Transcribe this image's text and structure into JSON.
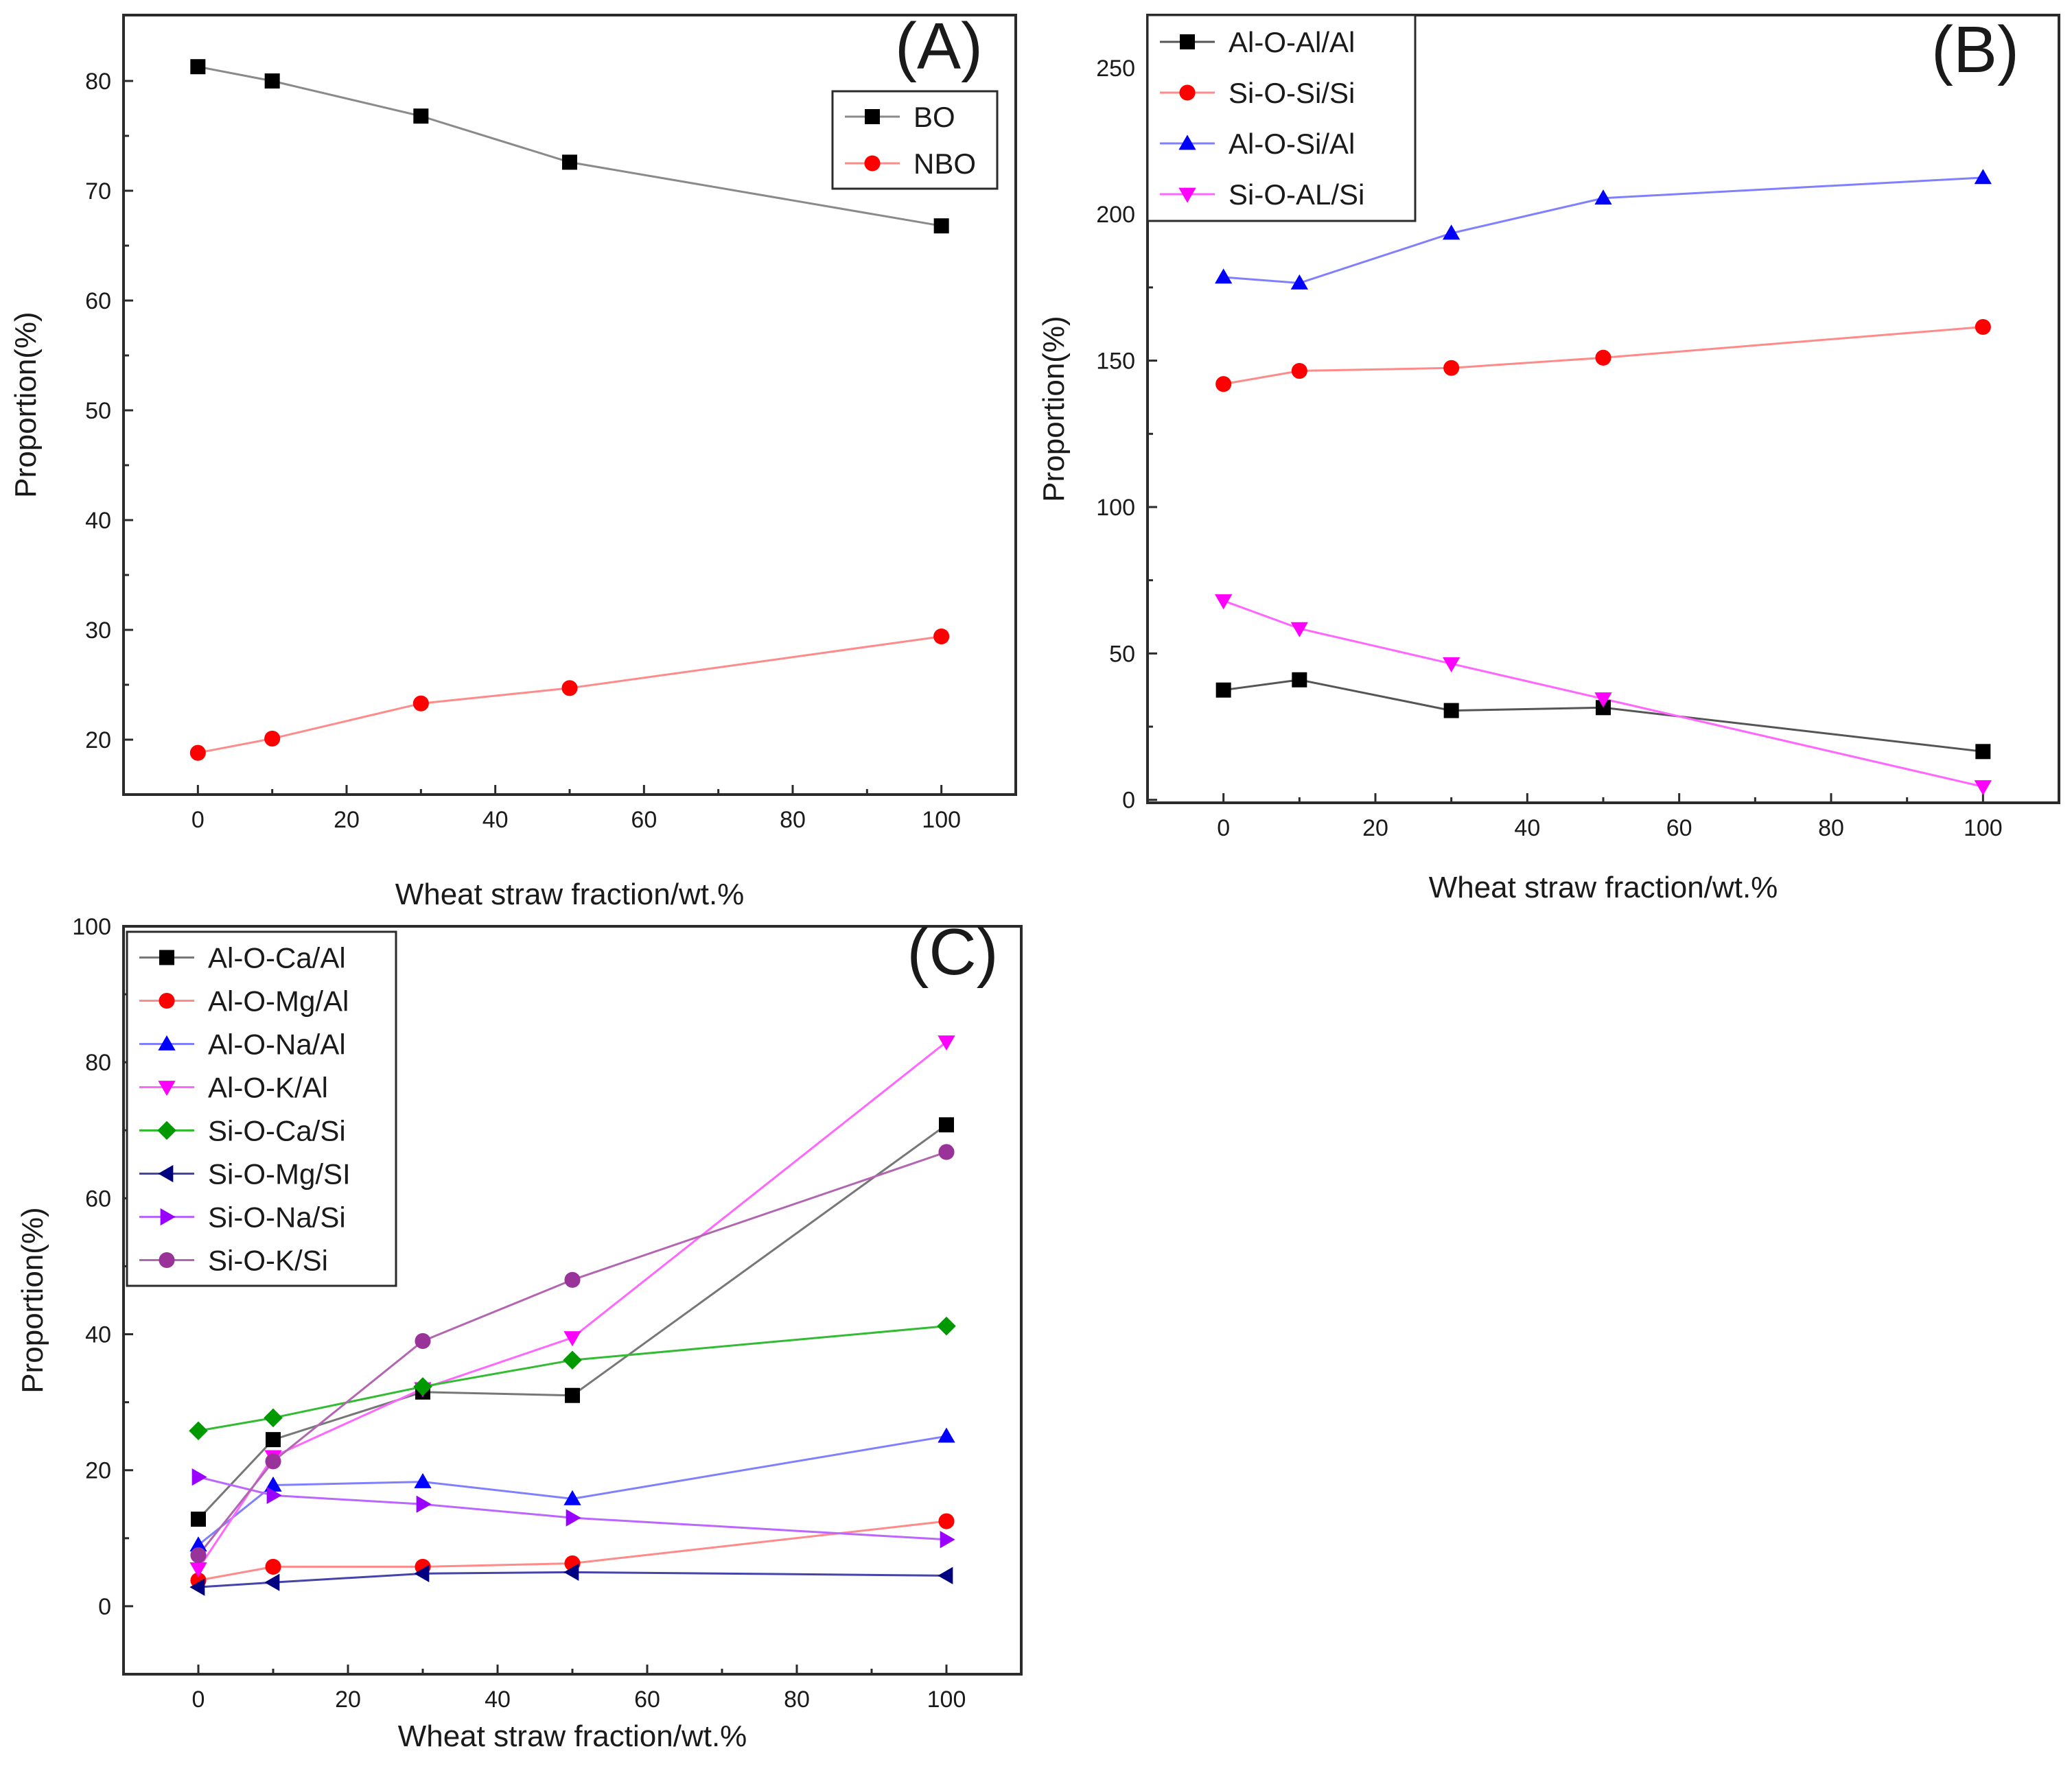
{
  "chart_data": [
    {
      "type": "line",
      "panel_label": "(A)",
      "xlabel": "Wheat straw fraction/wt.%",
      "ylabel": "Proportion(%)",
      "xlim": [
        -10,
        110
      ],
      "ylim": [
        15,
        86
      ],
      "xticks": [
        0,
        20,
        40,
        60,
        80,
        100
      ],
      "yticks": [
        20,
        30,
        40,
        50,
        60,
        70,
        80
      ],
      "x": [
        0,
        10,
        30,
        50,
        100
      ],
      "legend_position": "top-right",
      "series": [
        {
          "name": "BO",
          "color": "#000000",
          "marker": "square",
          "line_color": "#8a8a8a",
          "values": [
            81.3,
            80.0,
            76.8,
            72.6,
            66.8
          ]
        },
        {
          "name": "NBO",
          "color": "#ff0000",
          "marker": "circle",
          "line_color": "#ff8a8a",
          "values": [
            18.8,
            20.1,
            23.3,
            24.7,
            29.4
          ]
        }
      ]
    },
    {
      "type": "line",
      "panel_label": "(B)",
      "xlabel": "Wheat straw fraction/wt.%",
      "ylabel": "Proportion(%)",
      "xlim": [
        -10,
        110
      ],
      "ylim": [
        -1,
        268
      ],
      "xticks": [
        0,
        20,
        40,
        60,
        80,
        100
      ],
      "yticks": [
        0,
        50,
        100,
        150,
        200,
        250
      ],
      "x": [
        0,
        10,
        30,
        50,
        100
      ],
      "legend_position": "top-left",
      "series": [
        {
          "name": "Al-O-Al/Al",
          "color": "#000000",
          "marker": "square",
          "line_color": "#555555",
          "values": [
            37.5,
            41,
            30.5,
            31.5,
            16.5
          ]
        },
        {
          "name": "Si-O-Si/Si",
          "color": "#ff0000",
          "marker": "circle",
          "line_color": "#ff8a8a",
          "values": [
            142,
            146.5,
            147.5,
            151,
            161.5
          ]
        },
        {
          "name": "Al-O-Si/Al",
          "color": "#0000ff",
          "marker": "triangle-up",
          "line_color": "#8080ff",
          "values": [
            178.5,
            176.5,
            193.5,
            205.5,
            212.5
          ]
        },
        {
          "name": "Si-O-AL/Si",
          "color": "#ff00ff",
          "marker": "triangle-down",
          "line_color": "#ff66ff",
          "values": [
            68,
            58.5,
            46.5,
            34.5,
            4.5
          ]
        }
      ]
    },
    {
      "type": "line",
      "panel_label": "(C)",
      "xlabel": "Wheat straw fraction/wt.%",
      "ylabel": "Proportion(%)",
      "xlim": [
        -10,
        110
      ],
      "ylim": [
        -10,
        100
      ],
      "xticks": [
        0,
        20,
        40,
        60,
        80,
        100
      ],
      "yticks": [
        0,
        20,
        40,
        60,
        80,
        100
      ],
      "x": [
        0,
        10,
        30,
        50,
        100
      ],
      "legend_position": "top-left",
      "series": [
        {
          "name": "Al-O-Ca/Al",
          "color": "#000000",
          "marker": "square",
          "line_color": "#777777",
          "values": [
            12.8,
            24.5,
            31.5,
            31.0,
            70.8
          ]
        },
        {
          "name": "Al-O-Mg/Al",
          "color": "#ff0000",
          "marker": "circle",
          "line_color": "#ff8a8a",
          "values": [
            3.8,
            5.8,
            5.8,
            6.3,
            12.5
          ]
        },
        {
          "name": "Al-O-Na/Al",
          "color": "#0000ff",
          "marker": "triangle-up",
          "line_color": "#8080ff",
          "values": [
            9.0,
            17.8,
            18.3,
            15.8,
            25.0
          ]
        },
        {
          "name": "Al-O-K/Al",
          "color": "#ff00ff",
          "marker": "triangle-down",
          "line_color": "#ff66ff",
          "values": [
            5.5,
            22.0,
            32.0,
            39.5,
            83.0
          ]
        },
        {
          "name": "Si-O-Ca/Si",
          "color": "#009900",
          "marker": "diamond",
          "line_color": "#33bb33",
          "values": [
            25.8,
            27.7,
            32.3,
            36.2,
            41.2
          ]
        },
        {
          "name": "Si-O-Mg/SI",
          "color": "#000080",
          "marker": "triangle-left",
          "line_color": "#4444aa",
          "values": [
            2.8,
            3.5,
            4.8,
            5.0,
            4.5
          ]
        },
        {
          "name": "Si-O-Na/Si",
          "color": "#9900ff",
          "marker": "triangle-right",
          "line_color": "#bb66ff",
          "values": [
            19.0,
            16.3,
            15.0,
            13.0,
            9.8
          ]
        },
        {
          "name": "Si-O-K/Si",
          "color": "#993399",
          "marker": "circle",
          "line_color": "#b266b2",
          "values": [
            7.5,
            21.3,
            39.0,
            48.0,
            66.8
          ]
        }
      ]
    }
  ]
}
